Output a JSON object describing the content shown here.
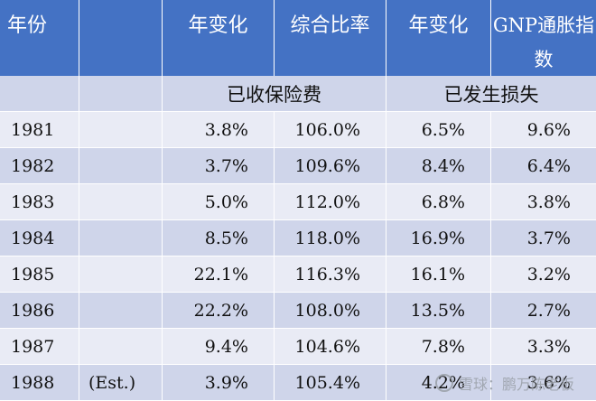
{
  "header": {
    "year": "年份",
    "blank": "",
    "premium_change": "年变化",
    "combined_ratio": "综合比率",
    "loss_change": "年变化",
    "gnp_line1": "GNP通胀指",
    "gnp_line2": "数"
  },
  "subheader": {
    "premiums": "已收保险费",
    "losses": "已发生损失"
  },
  "rows": [
    {
      "year": "1981",
      "note": "",
      "premium_change": "3.8%",
      "combined_ratio": "106.0%",
      "loss_change": "6.5%",
      "gnp": "9.6%"
    },
    {
      "year": "1982",
      "note": "",
      "premium_change": "3.7%",
      "combined_ratio": "109.6%",
      "loss_change": "8.4%",
      "gnp": "6.4%"
    },
    {
      "year": "1983",
      "note": "",
      "premium_change": "5.0%",
      "combined_ratio": "112.0%",
      "loss_change": "6.8%",
      "gnp": "3.8%"
    },
    {
      "year": "1984",
      "note": "",
      "premium_change": "8.5%",
      "combined_ratio": "118.0%",
      "loss_change": "16.9%",
      "gnp": "3.7%"
    },
    {
      "year": "1985",
      "note": "",
      "premium_change": "22.1%",
      "combined_ratio": "116.3%",
      "loss_change": "16.1%",
      "gnp": "3.2%"
    },
    {
      "year": "1986",
      "note": "",
      "premium_change": "22.2%",
      "combined_ratio": "108.0%",
      "loss_change": "13.5%",
      "gnp": "2.7%"
    },
    {
      "year": "1987",
      "note": "",
      "premium_change": "9.4%",
      "combined_ratio": "104.6%",
      "loss_change": "7.8%",
      "gnp": "3.3%"
    },
    {
      "year": "1988",
      "note": "(Est.)",
      "premium_change": "3.9%",
      "combined_ratio": "105.4%",
      "loss_change": "4.2%",
      "gnp": "3.6%"
    }
  ],
  "watermark": {
    "text": "雪球：鹏万陈老板"
  },
  "colors": {
    "header_bg": "#4472c4",
    "row_dark": "#cfd5ea",
    "row_light": "#e9ebf5"
  }
}
